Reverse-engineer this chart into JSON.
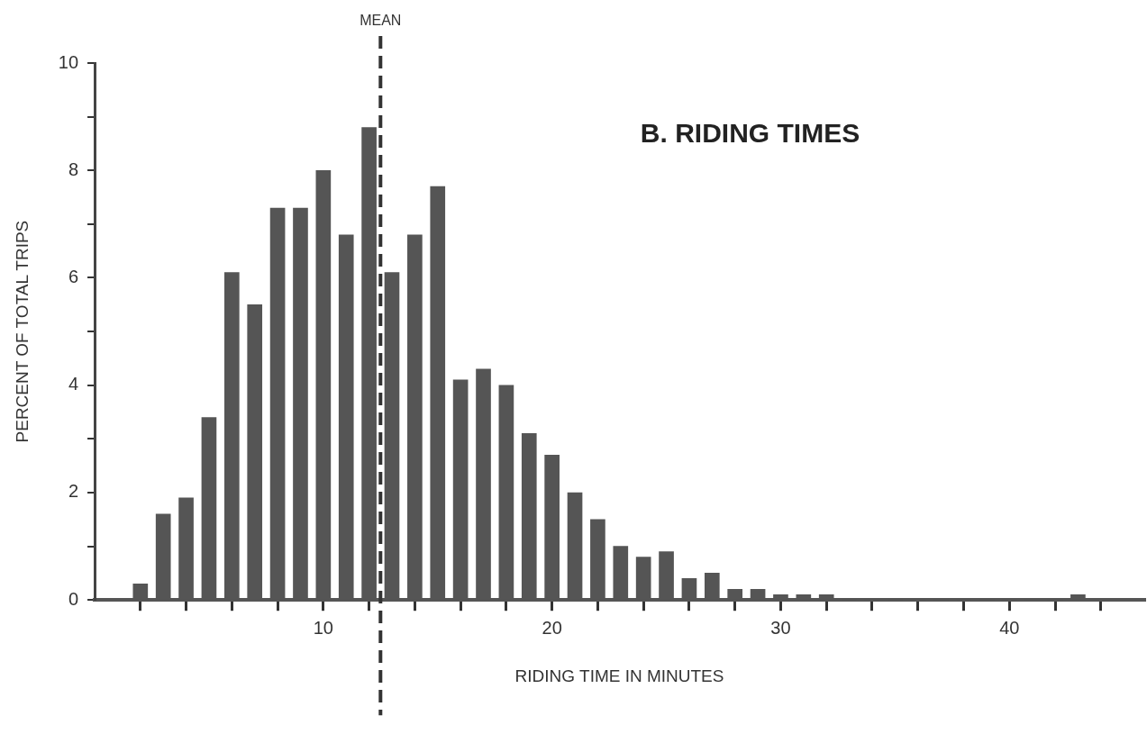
{
  "chart_data": {
    "type": "bar",
    "title": "B. RIDING TIMES",
    "xlabel": "RIDING TIME IN MINUTES",
    "ylabel": "PERCENT OF TOTAL TRIPS",
    "x": [
      2,
      3,
      4,
      5,
      6,
      7,
      8,
      9,
      10,
      11,
      12,
      13,
      14,
      15,
      16,
      17,
      18,
      19,
      20,
      21,
      22,
      23,
      24,
      25,
      26,
      27,
      28,
      29,
      30,
      31,
      32,
      33,
      34,
      35,
      36,
      37,
      38,
      39,
      40,
      41,
      42,
      43
    ],
    "values": [
      0.3,
      1.6,
      1.9,
      3.4,
      6.1,
      5.5,
      7.3,
      7.3,
      8.0,
      6.8,
      8.8,
      6.1,
      6.8,
      7.7,
      4.1,
      4.3,
      4.0,
      3.1,
      2.7,
      2.0,
      1.5,
      1.0,
      0.8,
      0.9,
      0.4,
      0.5,
      0.2,
      0.2,
      0.1,
      0.1,
      0.1,
      0,
      0,
      0,
      0,
      0,
      0,
      0,
      0,
      0,
      0,
      0.1
    ],
    "color": "#555555",
    "xlim": [
      0,
      45.9
    ],
    "xticks": [
      {
        "value": 2,
        "label": null
      },
      {
        "value": 4,
        "label": null
      },
      {
        "value": 6,
        "label": null
      },
      {
        "value": 8,
        "label": null
      },
      10,
      {
        "value": 12,
        "label": null
      },
      {
        "value": 14,
        "label": null
      },
      {
        "value": 16,
        "label": null
      },
      {
        "value": 18,
        "label": null
      },
      20,
      {
        "value": 22,
        "label": null
      },
      {
        "value": 24,
        "label": null
      },
      {
        "value": 26,
        "label": null
      },
      {
        "value": 28,
        "label": null
      },
      30,
      {
        "value": 32,
        "label": null
      },
      {
        "value": 34,
        "label": null
      },
      {
        "value": 36,
        "label": null
      },
      {
        "value": 38,
        "label": null
      },
      40,
      {
        "value": 42,
        "label": null
      },
      {
        "value": 44,
        "label": null
      }
    ],
    "ylim": [
      0,
      10
    ],
    "yticks": [
      0,
      {
        "value": 1,
        "label": null
      },
      2,
      {
        "value": 3,
        "label": null
      },
      4,
      {
        "value": 5,
        "label": null
      },
      6,
      {
        "value": 7,
        "label": null
      },
      8,
      {
        "value": 9,
        "label": null
      },
      10
    ],
    "ref_lines": [
      {
        "axis": "x",
        "value": 12.5,
        "label": "MEAN",
        "line_style": "dashed",
        "color": "#333333"
      }
    ]
  }
}
